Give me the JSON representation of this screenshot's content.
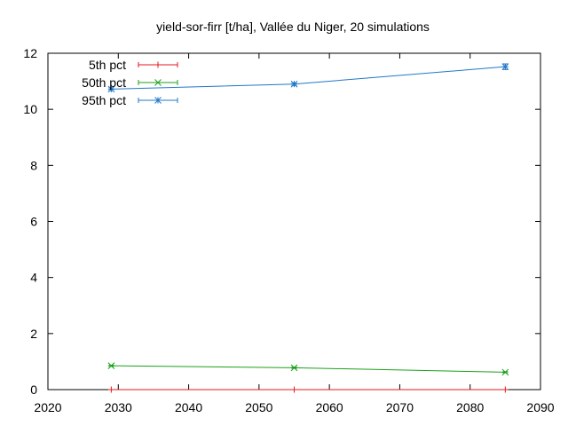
{
  "chart_data": {
    "type": "line",
    "title": "yield-sor-firr [t/ha], Vallée du Niger, 20 simulations",
    "xlabel": "",
    "ylabel": "",
    "xlim": [
      2020,
      2090
    ],
    "ylim": [
      0,
      12
    ],
    "xticks": [
      2020,
      2030,
      2040,
      2050,
      2060,
      2070,
      2080,
      2090
    ],
    "yticks": [
      0,
      2,
      4,
      6,
      8,
      10,
      12
    ],
    "x": [
      2029,
      2055,
      2085
    ],
    "legend_position": "top-left",
    "grid": false,
    "series": [
      {
        "name": "5th pct",
        "color": "#e41a1c",
        "marker": "plus",
        "values": [
          0.0,
          0.0,
          0.0
        ],
        "errors": [
          0.0,
          0.0,
          0.0
        ]
      },
      {
        "name": "50th pct",
        "color": "#1ba01b",
        "marker": "cross",
        "values": [
          0.85,
          0.78,
          0.62
        ],
        "errors": [
          0.02,
          0.02,
          0.02
        ]
      },
      {
        "name": "95th pct",
        "color": "#1f78c8",
        "marker": "star",
        "values": [
          10.72,
          10.9,
          11.52
        ],
        "errors": [
          0.05,
          0.05,
          0.1
        ]
      }
    ]
  }
}
